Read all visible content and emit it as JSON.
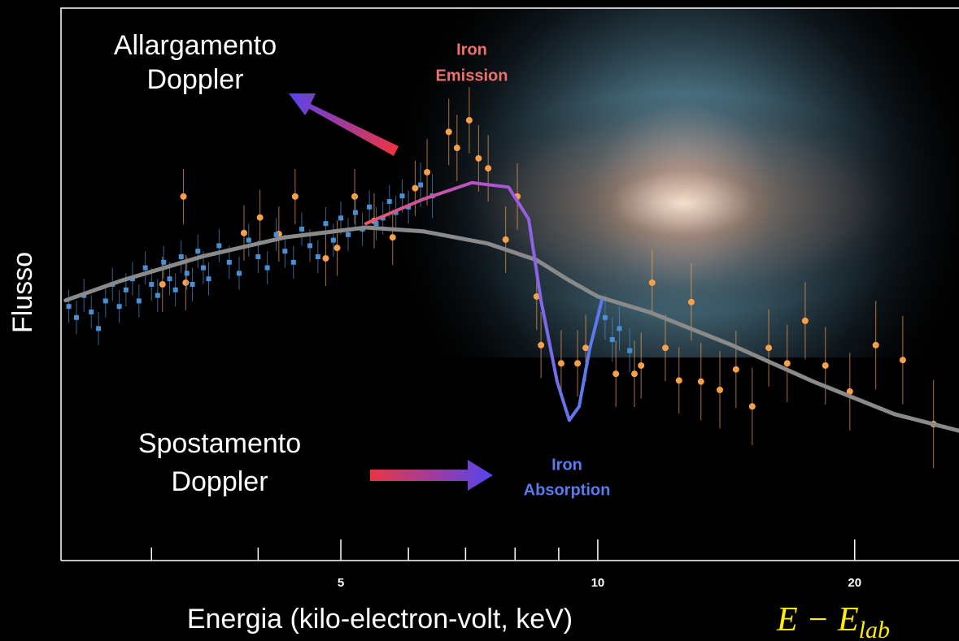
{
  "chart_data": {
    "type": "scatter",
    "log_x": true,
    "xlim": [
      2.35,
      26.5
    ],
    "xticks": [
      5,
      10,
      20
    ],
    "xminor_ticks": [
      3,
      4,
      6,
      7,
      8,
      9
    ],
    "ylim": [
      0,
      100
    ],
    "x_label": "Energia (kilo-electron-volt, keV)",
    "y_label": "Flusso",
    "broadening_label": [
      "Allargamento",
      "Doppler"
    ],
    "shift_label": [
      "Spostamento",
      "Doppler"
    ],
    "emission_label": [
      "Iron",
      "Emission"
    ],
    "absorption_label": [
      "Iron",
      "Absorption"
    ],
    "formula": "E − E",
    "formula_subscript": "lab",
    "series": [
      {
        "kind": "line",
        "color": "#8a8a8a",
        "x": [
          2.38,
          2.77,
          3.45,
          4.3,
          5.35,
          6.24,
          7.43,
          8.48,
          9.26,
          10.0,
          11.53,
          14.36,
          17.89,
          22.27,
          26.5
        ],
        "values": [
          47.1,
          50.7,
          55.1,
          58.5,
          60.3,
          59.6,
          57.4,
          54.4,
          50.7,
          47.8,
          44.9,
          39.0,
          32.4,
          26.5,
          23.5
        ]
      },
      {
        "kind": "line",
        "colors": [
          "#e8556a",
          "#a855e0",
          "#5a7af0"
        ],
        "x": [
          5.35,
          6.24,
          7.12,
          7.86,
          8.3,
          8.58,
          8.96,
          9.26,
          9.51,
          9.78,
          10.11
        ],
        "values": [
          61.0,
          65.4,
          68.4,
          67.6,
          61.8,
          47.1,
          32.4,
          25.4,
          27.9,
          38.2,
          47.1
        ]
      },
      {
        "kind": "points",
        "marker": "circle",
        "color": "#f7a04a",
        "x": [
          3.27,
          3.09,
          3.29,
          3.85,
          4.02,
          4.23,
          4.42,
          4.8,
          4.95,
          5.19,
          5.47,
          5.75,
          6.11,
          6.31,
          6.69,
          6.84,
          7.07,
          7.25,
          7.44,
          7.8,
          8.05,
          8.48,
          8.58,
          9.06,
          9.47,
          9.68,
          10.5,
          11.04,
          11.24,
          11.58,
          12.0,
          12.45,
          12.87,
          13.21,
          13.9,
          14.52,
          15.17,
          15.86,
          16.67,
          17.5,
          18.48,
          19.74,
          21.17,
          22.77,
          24.74
        ],
        "values": [
          65.9,
          50.0,
          50.3,
          59.3,
          62.1,
          59.1,
          65.9,
          54.7,
          56.6,
          65.9,
          61.5,
          58.5,
          67.4,
          70.3,
          77.6,
          74.7,
          79.7,
          72.8,
          71.0,
          58.1,
          65.9,
          47.8,
          39.0,
          35.7,
          35.7,
          38.5,
          33.8,
          33.8,
          35.3,
          50.3,
          38.5,
          32.6,
          46.8,
          32.4,
          30.9,
          34.6,
          27.9,
          38.5,
          35.7,
          43.4,
          35.3,
          30.6,
          39.0,
          36.3,
          24.7
        ],
        "errors": [
          5,
          5,
          5,
          5,
          5,
          5,
          5,
          5,
          5,
          5,
          5,
          5,
          5,
          6,
          6,
          6,
          6,
          6,
          6,
          6,
          6,
          6,
          6,
          6,
          6,
          6,
          6,
          6,
          6,
          6,
          6,
          6,
          7,
          7,
          7,
          7,
          7,
          7,
          7,
          7,
          7,
          7,
          8,
          8,
          8
        ]
      },
      {
        "kind": "points",
        "marker": "square",
        "color": "#4a8fd4",
        "x": [
          2.4,
          2.45,
          2.5,
          2.55,
          2.6,
          2.65,
          2.7,
          2.75,
          2.8,
          2.85,
          2.9,
          2.95,
          3.0,
          3.05,
          3.1,
          3.15,
          3.2,
          3.25,
          3.3,
          3.35,
          3.4,
          3.45,
          3.5,
          3.6,
          3.7,
          3.8,
          3.9,
          4.0,
          4.1,
          4.2,
          4.3,
          4.4,
          4.5,
          4.6,
          4.7,
          4.8,
          4.9,
          5.0,
          5.1,
          5.2,
          5.3,
          5.4,
          5.5,
          5.6,
          5.7,
          5.8,
          5.9,
          6.0,
          6.2,
          6.4,
          10.2,
          10.4,
          10.6,
          10.9
        ],
        "values": [
          46,
          44,
          48,
          45,
          42,
          47,
          50,
          46,
          49,
          51,
          47,
          53,
          50,
          48,
          54,
          51,
          49,
          55,
          52,
          50,
          56,
          53,
          51,
          57,
          54,
          52,
          58,
          55,
          53,
          59,
          56,
          54,
          60,
          57,
          55,
          61,
          58,
          62,
          59,
          63,
          60,
          64,
          61,
          62,
          65,
          63,
          66,
          64,
          68,
          66,
          44,
          40,
          42,
          38
        ],
        "errors": [
          3,
          3,
          3,
          3,
          3,
          3,
          3,
          3,
          3,
          3,
          3,
          3,
          3,
          3,
          3,
          3,
          3,
          3,
          3,
          3,
          3,
          3,
          3,
          3,
          3,
          3,
          3,
          3,
          3,
          3,
          3,
          3,
          3,
          3,
          3,
          3,
          3,
          3,
          3,
          3,
          3,
          3,
          3,
          3,
          3,
          3,
          3,
          3,
          4,
          4,
          4,
          4,
          4,
          4
        ]
      }
    ]
  }
}
